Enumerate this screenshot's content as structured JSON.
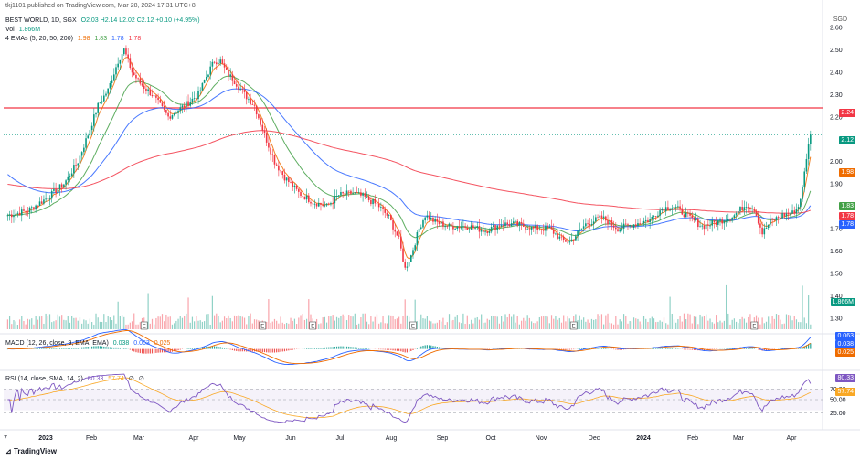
{
  "publisher": "tkj1101 published on TradingView.com, Mar 28, 2024 17:31 UTC+8",
  "header": {
    "symbol": "BEST WORLD, 1D, SGX",
    "ohlc": "O2.03  H2.14  L2.02  C2.12  +0.10 (+4.95%)",
    "vol_label": "Vol",
    "vol_value": "1.866M",
    "ema_label": "4 EMAs (5, 20, 50, 200)",
    "ema_values": [
      "1.98",
      "1.83",
      "1.78",
      "1.78"
    ]
  },
  "currency": "SGD",
  "macd_legend": {
    "label": "MACD (12, 26, close, 9, EMA, EMA)",
    "values": [
      "0.038",
      "0.063",
      "0.025"
    ]
  },
  "rsi_legend": {
    "label": "RSI (14, close, SMA, 14, 2)",
    "values": [
      "80.33",
      "57.74",
      "∅",
      "∅"
    ]
  },
  "price_badges": [
    {
      "value": "2.24",
      "color": "#f23645"
    },
    {
      "value": "2.12",
      "color": "#089981"
    },
    {
      "value": "1.98",
      "color": "#ef6c00"
    },
    {
      "value": "1.83",
      "color": "#43a047"
    },
    {
      "value": "1.78",
      "color": "#f23645"
    },
    {
      "value": "1.78",
      "color": "#2962ff"
    },
    {
      "value": "1.866M",
      "color": "#089981"
    }
  ],
  "macd_badges": [
    {
      "value": "0.063",
      "color": "#2962ff"
    },
    {
      "value": "0.038",
      "color": "#2962ff"
    },
    {
      "value": "0.025",
      "color": "#ef6c00"
    }
  ],
  "rsi_badges": [
    {
      "value": "80.33",
      "color": "#7e57c2"
    },
    {
      "value": "57.74",
      "color": "#f9a825"
    }
  ],
  "branding": "TradingView",
  "chart_data": {
    "type": "candlestick",
    "ylim": [
      1.25,
      2.6
    ],
    "y_ticks": [
      "2.60",
      "2.50",
      "2.40",
      "2.30",
      "2.20",
      "2.00",
      "1.90",
      "1.70",
      "1.60",
      "1.50",
      "1.40",
      "1.30"
    ],
    "x_ticks": [
      "7",
      "2023",
      "Feb",
      "Mar",
      "Apr",
      "May",
      "Jun",
      "Jul",
      "Aug",
      "Sep",
      "Oct",
      "Nov",
      "Dec",
      "2024",
      "Feb",
      "Mar",
      "Apr"
    ],
    "resistance_level": 2.24,
    "rsi_levels": [
      "70.00",
      "50.00",
      "25.00"
    ],
    "rsi_range": [
      0,
      100
    ],
    "macd_range": [
      -0.12,
      0.08
    ],
    "price_anchors": [
      [
        0,
        1.76
      ],
      [
        10,
        1.78
      ],
      [
        20,
        1.84
      ],
      [
        28,
        1.9
      ],
      [
        35,
        2.0
      ],
      [
        40,
        2.12
      ],
      [
        45,
        2.25
      ],
      [
        50,
        2.32
      ],
      [
        55,
        2.45
      ],
      [
        58,
        2.5
      ],
      [
        62,
        2.4
      ],
      [
        66,
        2.35
      ],
      [
        72,
        2.3
      ],
      [
        76,
        2.25
      ],
      [
        80,
        2.2
      ],
      [
        88,
        2.25
      ],
      [
        95,
        2.3
      ],
      [
        100,
        2.4
      ],
      [
        103,
        2.45
      ],
      [
        106,
        2.45
      ],
      [
        109,
        2.4
      ],
      [
        113,
        2.36
      ],
      [
        118,
        2.3
      ],
      [
        123,
        2.25
      ],
      [
        128,
        2.12
      ],
      [
        133,
        2.0
      ],
      [
        138,
        1.93
      ],
      [
        145,
        1.86
      ],
      [
        152,
        1.82
      ],
      [
        159,
        1.8
      ],
      [
        165,
        1.85
      ],
      [
        172,
        1.86
      ],
      [
        178,
        1.84
      ],
      [
        185,
        1.8
      ],
      [
        190,
        1.75
      ],
      [
        195,
        1.65
      ],
      [
        198,
        1.52
      ],
      [
        201,
        1.58
      ],
      [
        205,
        1.7
      ],
      [
        208,
        1.76
      ],
      [
        213,
        1.73
      ],
      [
        220,
        1.71
      ],
      [
        230,
        1.71
      ],
      [
        238,
        1.69
      ],
      [
        246,
        1.72
      ],
      [
        253,
        1.72
      ],
      [
        262,
        1.7
      ],
      [
        270,
        1.7
      ],
      [
        276,
        1.65
      ],
      [
        280,
        1.64
      ],
      [
        288,
        1.72
      ],
      [
        296,
        1.75
      ],
      [
        304,
        1.7
      ],
      [
        312,
        1.72
      ],
      [
        320,
        1.74
      ],
      [
        326,
        1.79
      ],
      [
        332,
        1.8
      ],
      [
        338,
        1.76
      ],
      [
        346,
        1.71
      ],
      [
        354,
        1.73
      ],
      [
        362,
        1.76
      ],
      [
        368,
        1.81
      ],
      [
        372,
        1.79
      ],
      [
        376,
        1.68
      ],
      [
        380,
        1.73
      ],
      [
        386,
        1.76
      ],
      [
        391,
        1.77
      ],
      [
        394,
        1.8
      ],
      [
        396,
        1.88
      ],
      [
        398,
        2.02
      ],
      [
        400,
        2.12
      ]
    ],
    "candle_count": 401,
    "volume_spike_days": [
      55,
      70,
      90,
      102,
      130,
      150,
      198,
      203,
      330,
      358,
      396,
      399
    ],
    "earnings_days": [
      68,
      127,
      152,
      202,
      282,
      372
    ]
  }
}
